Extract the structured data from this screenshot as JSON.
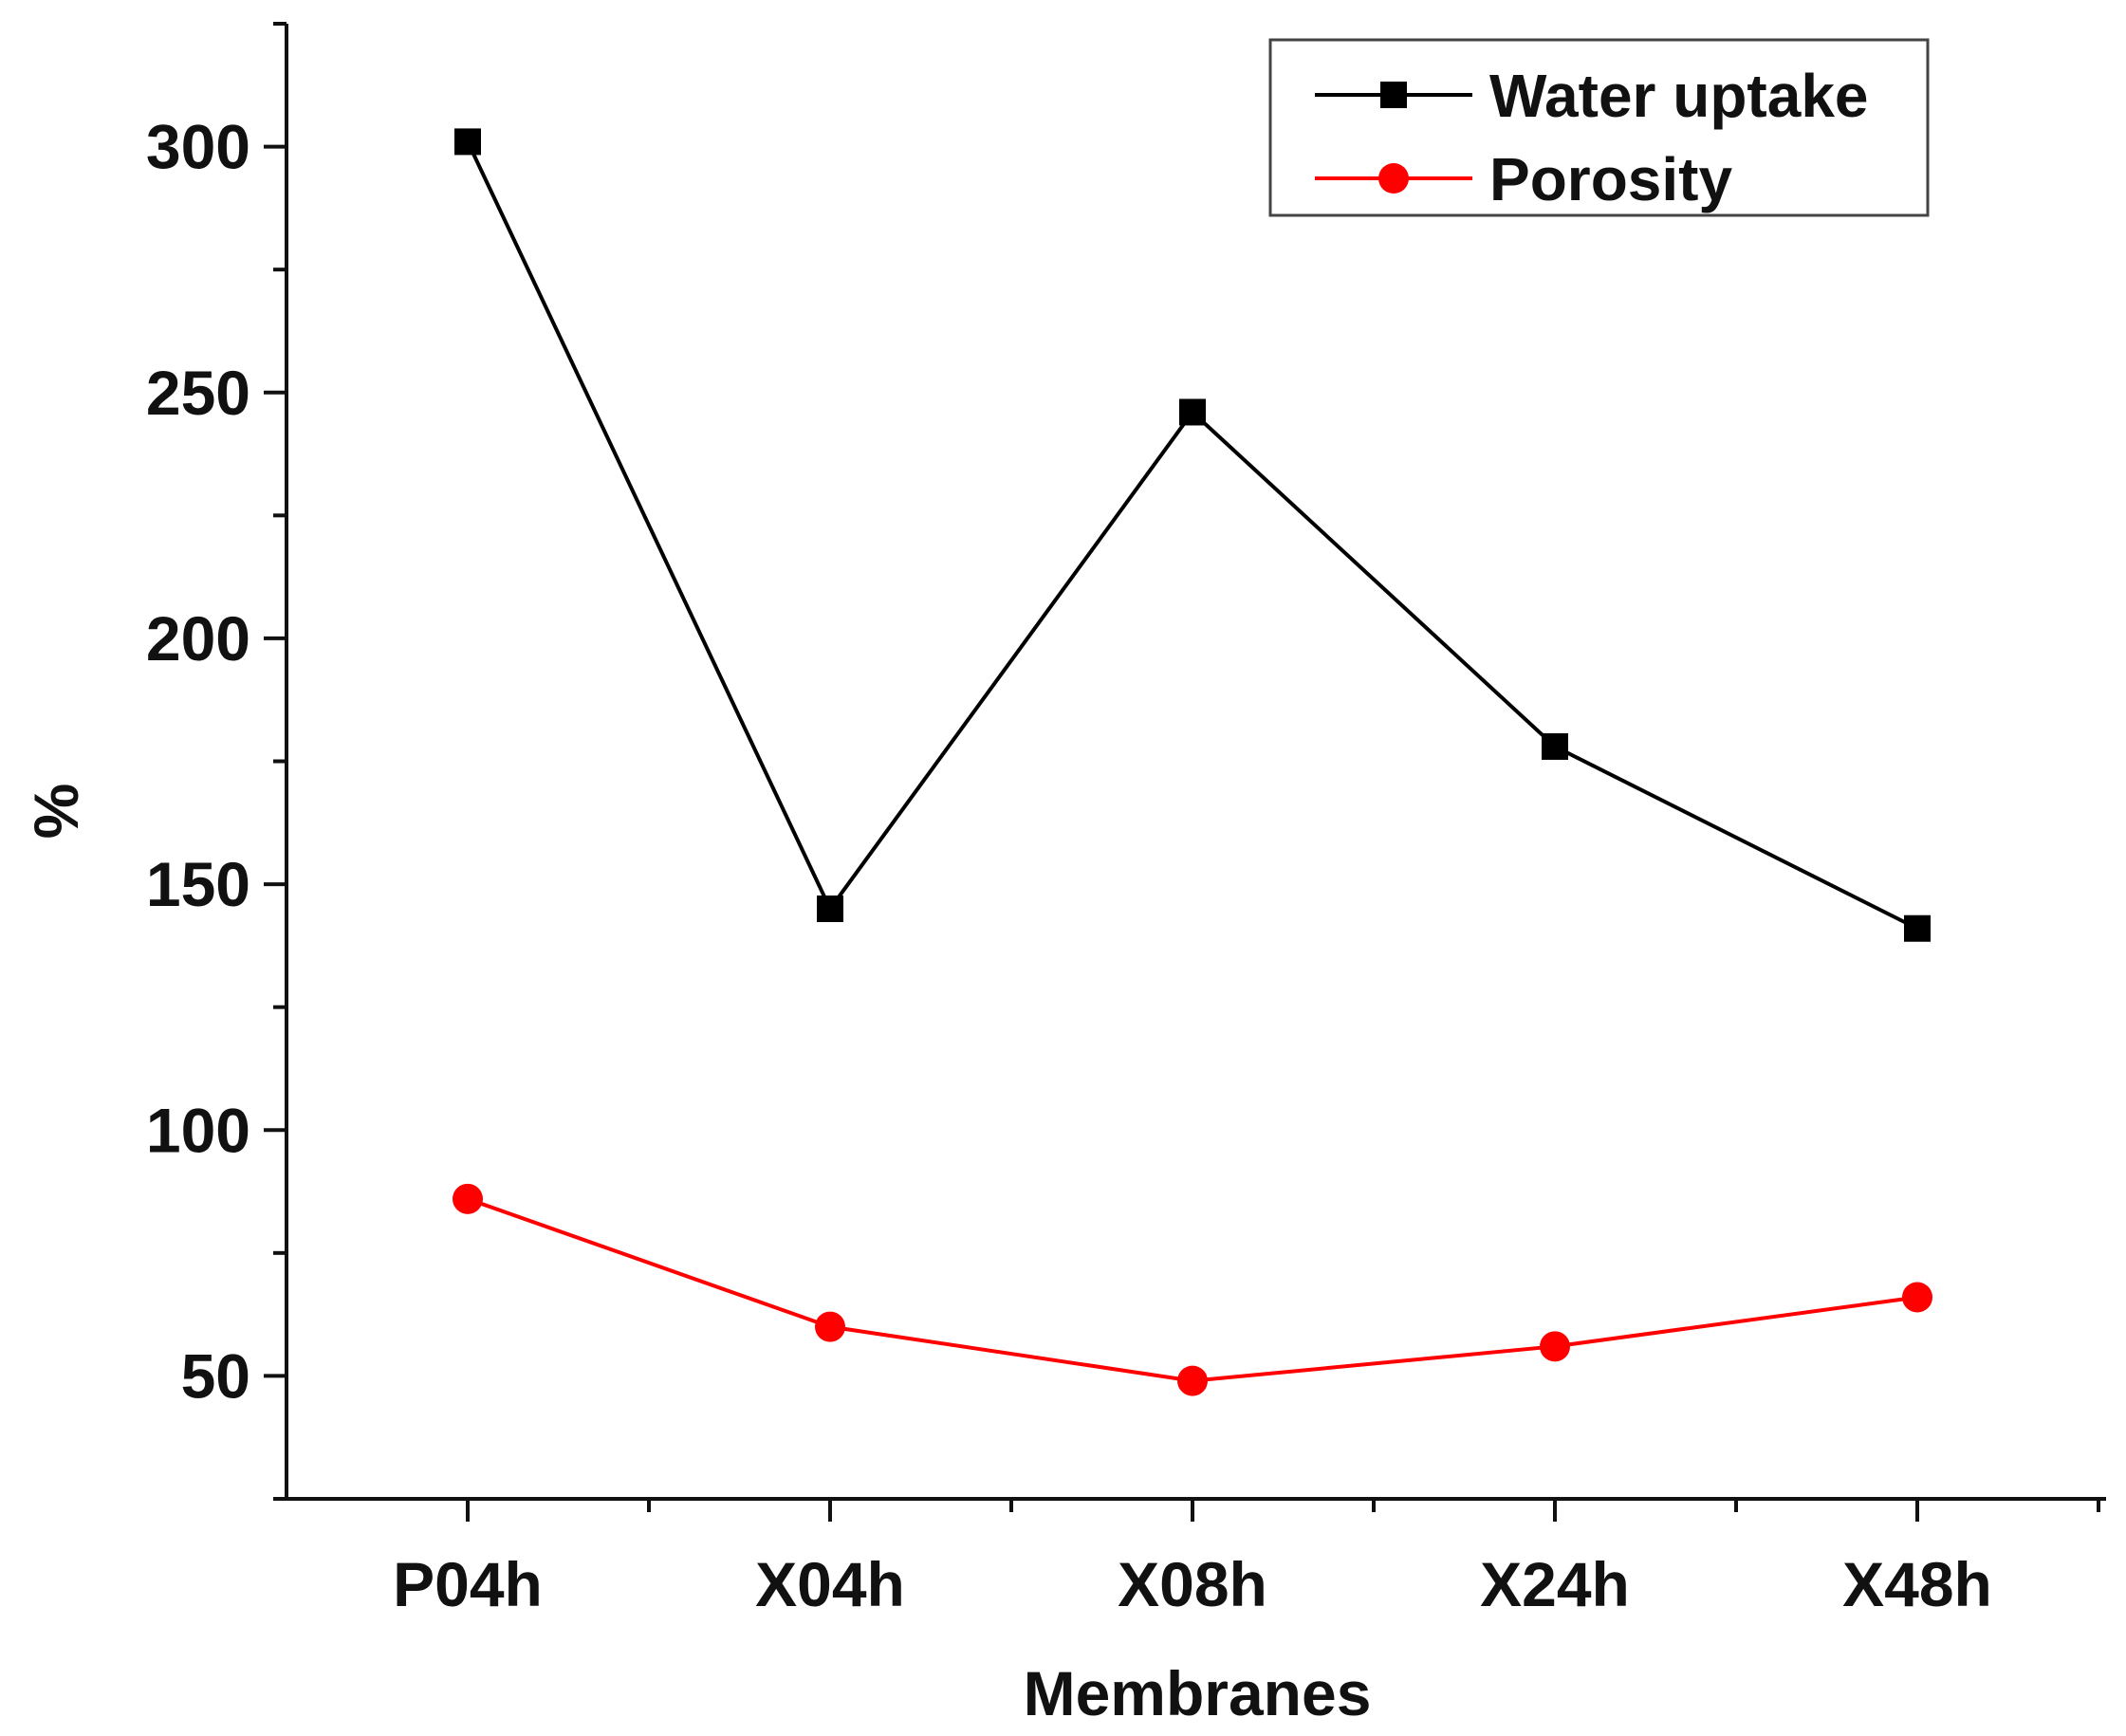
{
  "chart_data": {
    "type": "line",
    "title": "",
    "xlabel": "Membranes",
    "ylabel": "%",
    "categories": [
      "P04h",
      "X04h",
      "X08h",
      "X24h",
      "X48h"
    ],
    "ylim": [
      25,
      325
    ],
    "yticks": [
      50,
      100,
      150,
      200,
      250,
      300
    ],
    "yticks_labels": [
      "50",
      "100",
      "150",
      "200",
      "250",
      "300"
    ],
    "grid": false,
    "legend_position": "top-right",
    "series": [
      {
        "name": "Water uptake",
        "marker": "square",
        "color": "#000000",
        "values": [
          301,
          145,
          246,
          178,
          141
        ]
      },
      {
        "name": "Porosity",
        "marker": "circle",
        "color": "#ff0000",
        "values": [
          86,
          60,
          49,
          56,
          66
        ]
      }
    ]
  }
}
